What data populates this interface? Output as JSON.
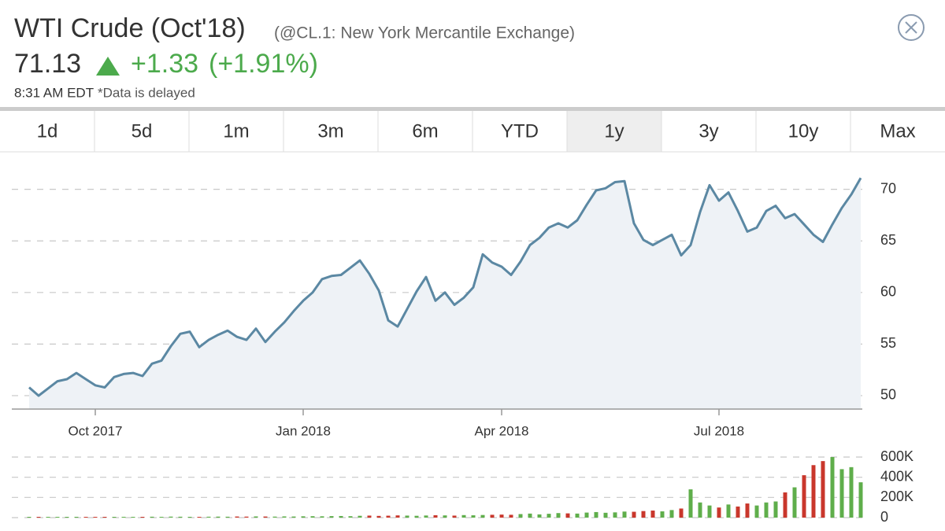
{
  "header": {
    "title": "WTI Crude (Oct'18)",
    "symbol": "(@CL.1: New York Mercantile Exchange)",
    "price": "71.13",
    "change": "+1.33",
    "change_pct": "(+1.91%)",
    "time": "8:31 AM EDT",
    "note": "*Data is delayed"
  },
  "tabs": {
    "items": [
      "1d",
      "5d",
      "1m",
      "3m",
      "6m",
      "YTD",
      "1y",
      "3y",
      "10y",
      "Max"
    ],
    "selected": 6
  },
  "chart_data": [
    {
      "type": "line",
      "color": "#5b88a3",
      "fill": "#eef2f6",
      "grid": true,
      "categories": [
        null,
        null,
        null,
        null,
        null,
        null,
        null,
        "Oct 2017",
        null,
        null,
        null,
        null,
        null,
        null,
        null,
        null,
        null,
        null,
        null,
        null,
        null,
        null,
        null,
        null,
        null,
        null,
        null,
        null,
        null,
        "Jan 2018",
        null,
        null,
        null,
        null,
        null,
        null,
        null,
        null,
        null,
        null,
        null,
        null,
        null,
        null,
        null,
        null,
        null,
        null,
        null,
        null,
        "Apr 2018",
        null,
        null,
        null,
        null,
        null,
        null,
        null,
        null,
        null,
        null,
        null,
        null,
        null,
        null,
        null,
        null,
        null,
        null,
        null,
        null,
        null,
        null,
        "Jul 2018",
        null,
        null,
        null,
        null,
        null,
        null,
        null,
        null,
        null,
        null,
        null,
        null,
        null,
        null,
        null
      ],
      "values": [
        50.8,
        50.0,
        50.7,
        51.4,
        51.6,
        52.2,
        51.6,
        51.0,
        50.8,
        51.8,
        52.1,
        52.2,
        51.9,
        53.1,
        53.4,
        54.8,
        56.0,
        56.2,
        54.7,
        55.4,
        55.9,
        56.3,
        55.7,
        55.4,
        56.5,
        55.2,
        56.2,
        57.1,
        58.2,
        59.2,
        60.0,
        61.3,
        61.6,
        61.7,
        62.4,
        63.1,
        61.8,
        60.2,
        57.3,
        56.7,
        58.4,
        60.1,
        61.5,
        59.2,
        60.0,
        58.8,
        59.5,
        60.5,
        63.7,
        62.9,
        62.5,
        61.7,
        63.0,
        64.6,
        65.3,
        66.3,
        66.7,
        66.3,
        67.0,
        68.5,
        69.9,
        70.1,
        70.7,
        70.8,
        66.7,
        65.1,
        64.6,
        65.1,
        65.6,
        63.6,
        64.6,
        67.8,
        70.4,
        68.9,
        69.7,
        67.9,
        65.9,
        66.3,
        67.9,
        68.4,
        67.2,
        67.6,
        66.6,
        65.6,
        64.9,
        66.6,
        68.2,
        69.5,
        71.1
      ],
      "ylim": [
        48.7,
        73.1
      ],
      "yticks": [
        50,
        55,
        60,
        65,
        70
      ]
    },
    {
      "type": "volume",
      "up_color": "#5fae4b",
      "down_color": "#c9372c",
      "grid": true,
      "values": [
        6000,
        5000,
        7000,
        6000,
        5000,
        8000,
        6000,
        5000,
        7000,
        6000,
        8000,
        7000,
        6000,
        9000,
        8000,
        10000,
        9000,
        8000,
        7000,
        9000,
        10000,
        9000,
        11000,
        10000,
        12000,
        11000,
        10000,
        12000,
        11000,
        13000,
        14000,
        13000,
        15000,
        16000,
        14000,
        18000,
        20000,
        17000,
        19000,
        22000,
        20000,
        18000,
        21000,
        24000,
        22000,
        20000,
        25000,
        23000,
        26000,
        28000,
        30000,
        28000,
        35000,
        40000,
        32000,
        38000,
        45000,
        42000,
        40000,
        50000,
        55000,
        48000,
        52000,
        60000,
        58000,
        65000,
        70000,
        62000,
        75000,
        90000,
        280000,
        150000,
        120000,
        100000,
        130000,
        110000,
        140000,
        120000,
        150000,
        160000,
        250000,
        300000,
        420000,
        520000,
        560000,
        600000,
        480000,
        500000,
        350000
      ],
      "ylim": [
        0,
        600000
      ],
      "yticks": [
        0,
        {
          "value": 200000,
          "label": "200K"
        },
        {
          "value": 400000,
          "label": "400K"
        },
        {
          "value": 600000,
          "label": "600K"
        }
      ]
    }
  ]
}
